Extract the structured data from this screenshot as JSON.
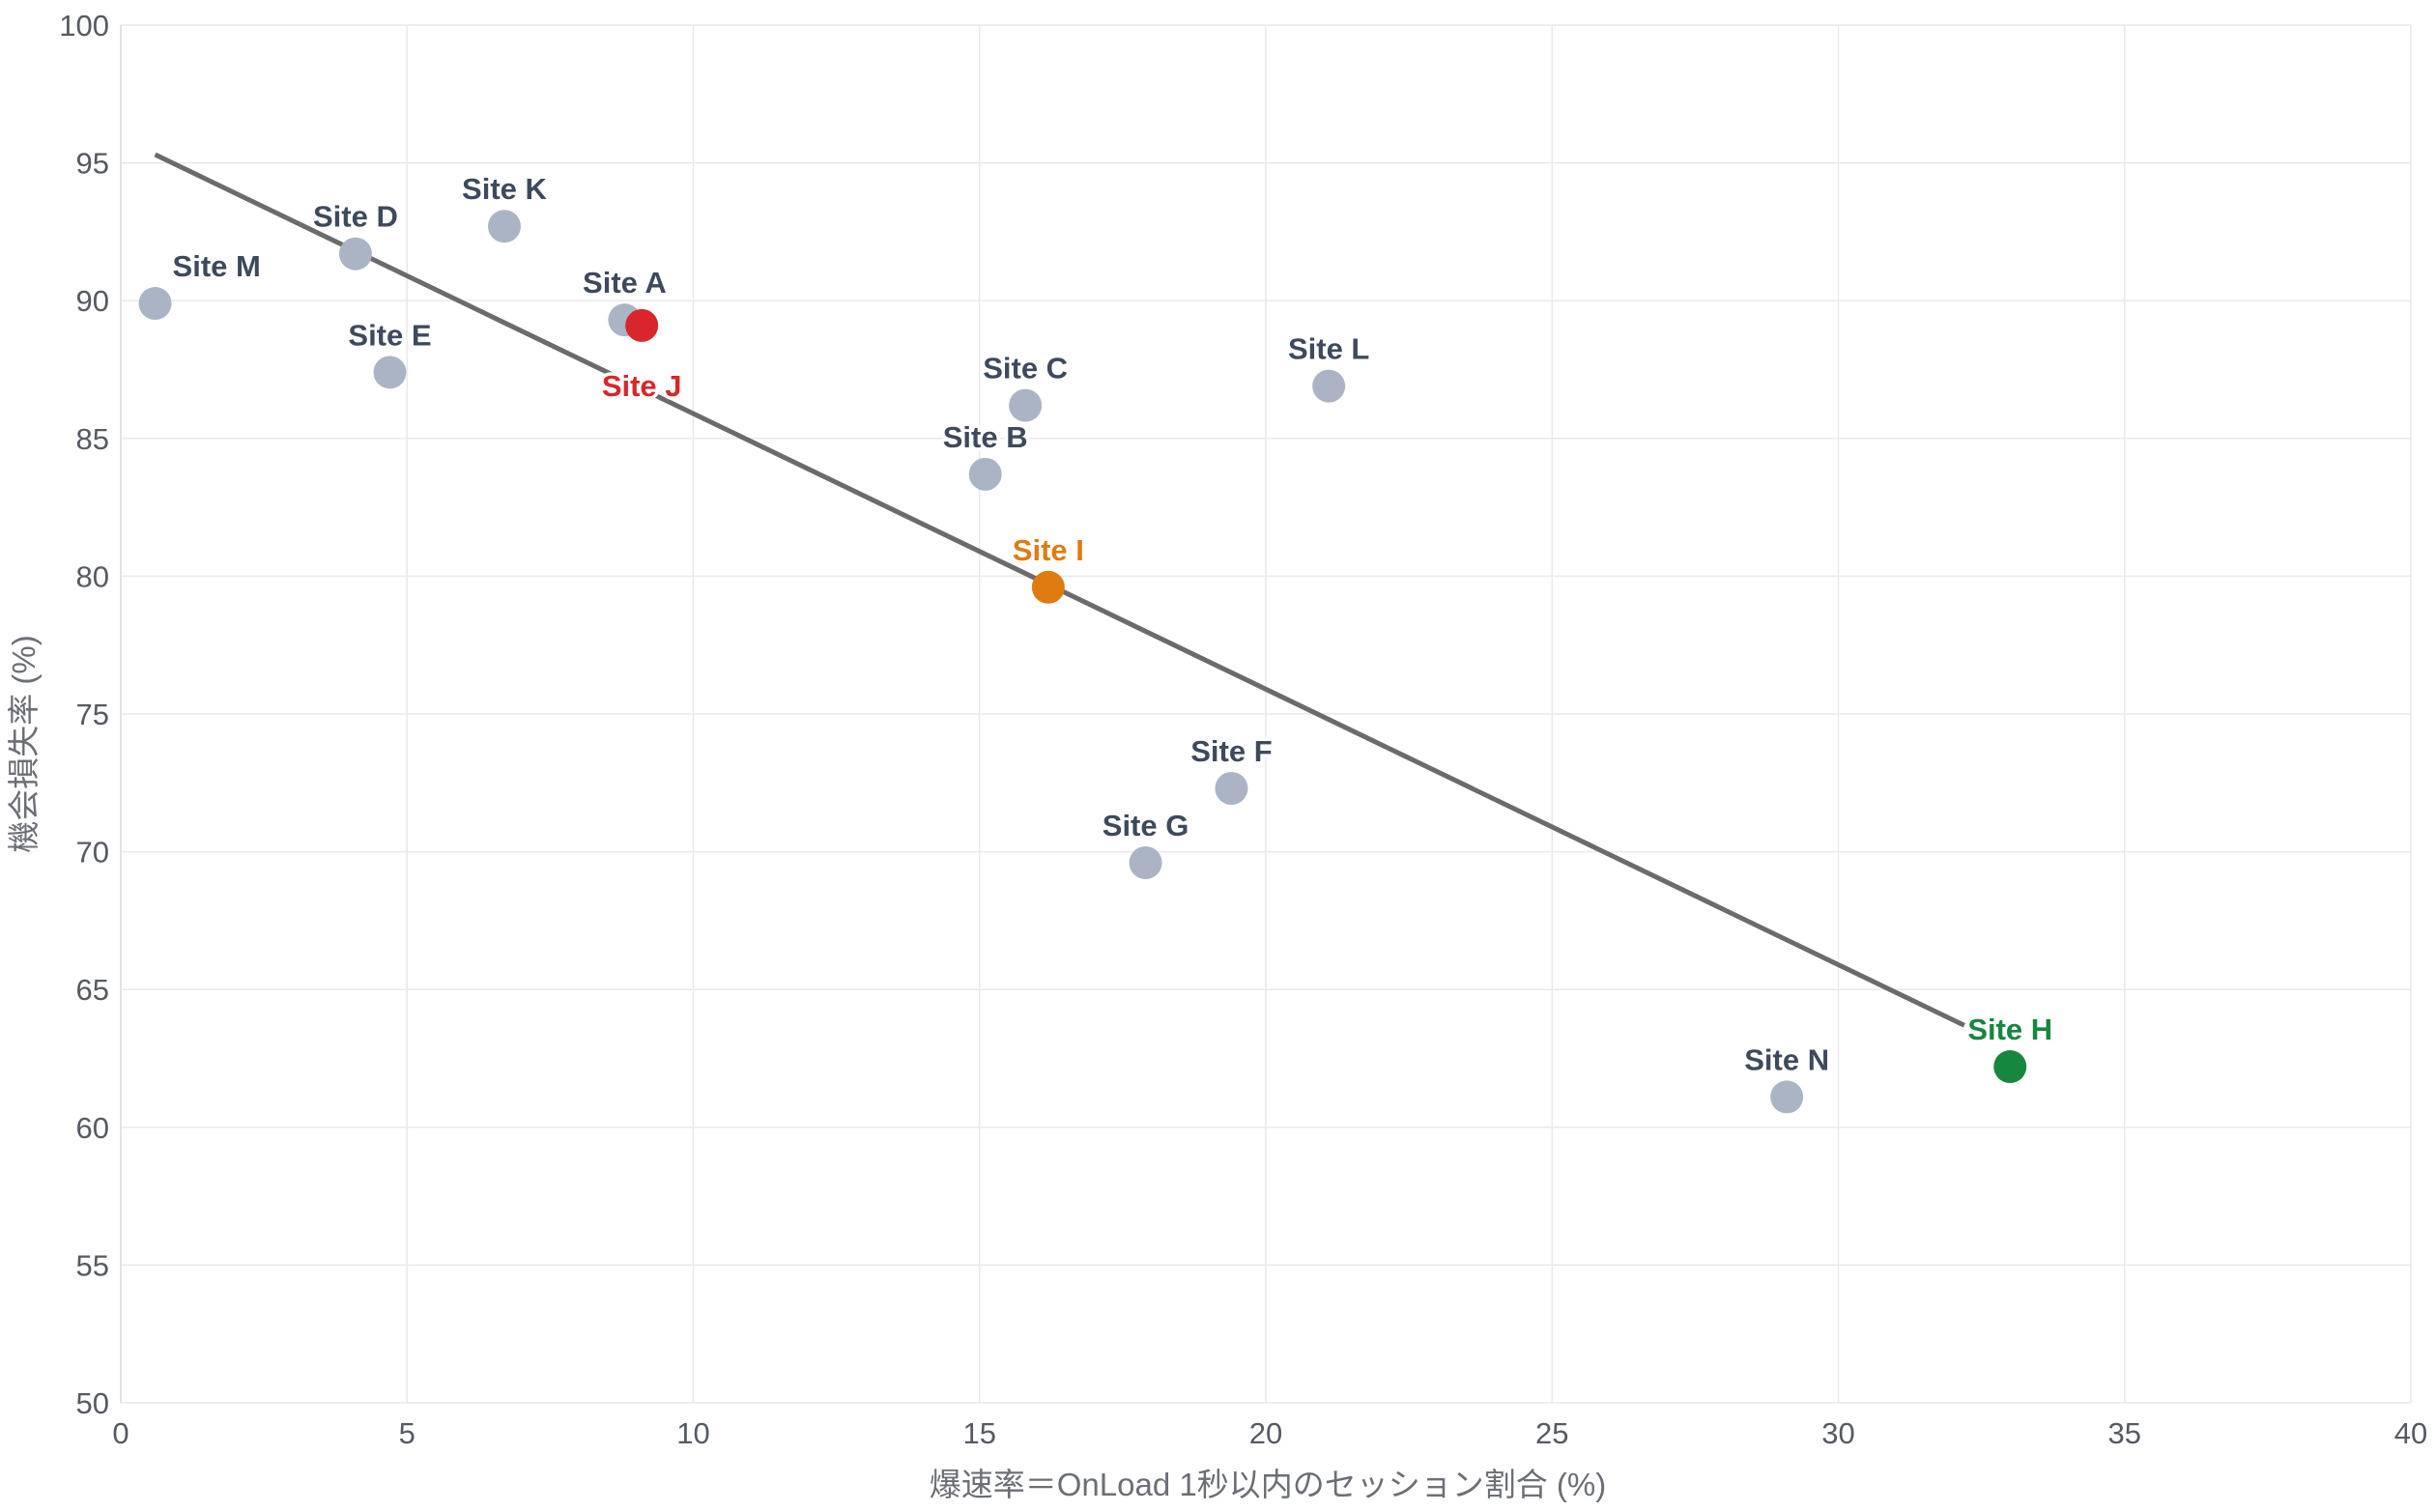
{
  "chart_data": {
    "type": "scatter",
    "xlabel": "爆速率＝OnLoad 1秒以内のセッション割合 (%)",
    "ylabel": "機会損失率 (%)",
    "xlim": [
      0,
      40
    ],
    "ylim": [
      50,
      100
    ],
    "x_ticks": [
      0,
      5,
      10,
      15,
      20,
      25,
      30,
      35,
      40
    ],
    "y_ticks": [
      50,
      55,
      60,
      65,
      70,
      75,
      80,
      85,
      90,
      95,
      100
    ],
    "grid": true,
    "trendline": {
      "x": [
        0.6,
        32.2
      ],
      "y": [
        95.3,
        63.7
      ],
      "color": "#6b6b6b"
    },
    "points": [
      {
        "label": "Site M",
        "x": 0.6,
        "y": 89.9,
        "color": "#aab4c4",
        "label_color": "#3e4a5c",
        "label_pos": "above-right"
      },
      {
        "label": "Site D",
        "x": 4.1,
        "y": 91.7,
        "color": "#aab4c4",
        "label_color": "#3e4a5c",
        "label_pos": "above"
      },
      {
        "label": "Site K",
        "x": 6.7,
        "y": 92.7,
        "color": "#aab4c4",
        "label_color": "#3e4a5c",
        "label_pos": "above"
      },
      {
        "label": "Site E",
        "x": 4.7,
        "y": 87.4,
        "color": "#aab4c4",
        "label_color": "#3e4a5c",
        "label_pos": "above"
      },
      {
        "label": "Site A",
        "x": 8.8,
        "y": 89.3,
        "color": "#aab4c4",
        "label_color": "#3e4a5c",
        "label_pos": "above"
      },
      {
        "label": "Site J",
        "x": 9.1,
        "y": 89.1,
        "color": "#d9262c",
        "label_color": "#d9262c",
        "label_pos": "below"
      },
      {
        "label": "Site C",
        "x": 15.8,
        "y": 86.2,
        "color": "#aab4c4",
        "label_color": "#3e4a5c",
        "label_pos": "above"
      },
      {
        "label": "Site B",
        "x": 15.1,
        "y": 83.7,
        "color": "#aab4c4",
        "label_color": "#3e4a5c",
        "label_pos": "above"
      },
      {
        "label": "Site L",
        "x": 21.1,
        "y": 86.9,
        "color": "#aab4c4",
        "label_color": "#3e4a5c",
        "label_pos": "above"
      },
      {
        "label": "Site I",
        "x": 16.2,
        "y": 79.6,
        "color": "#e07b12",
        "label_color": "#e07b12",
        "label_pos": "above"
      },
      {
        "label": "Site F",
        "x": 19.4,
        "y": 72.3,
        "color": "#aab4c4",
        "label_color": "#3e4a5c",
        "label_pos": "above"
      },
      {
        "label": "Site G",
        "x": 17.9,
        "y": 69.6,
        "color": "#aab4c4",
        "label_color": "#3e4a5c",
        "label_pos": "above"
      },
      {
        "label": "Site N",
        "x": 29.1,
        "y": 61.1,
        "color": "#aab4c4",
        "label_color": "#3e4a5c",
        "label_pos": "above"
      },
      {
        "label": "Site H",
        "x": 33.0,
        "y": 62.2,
        "color": "#17863f",
        "label_color": "#17863f",
        "label_pos": "above"
      }
    ]
  }
}
